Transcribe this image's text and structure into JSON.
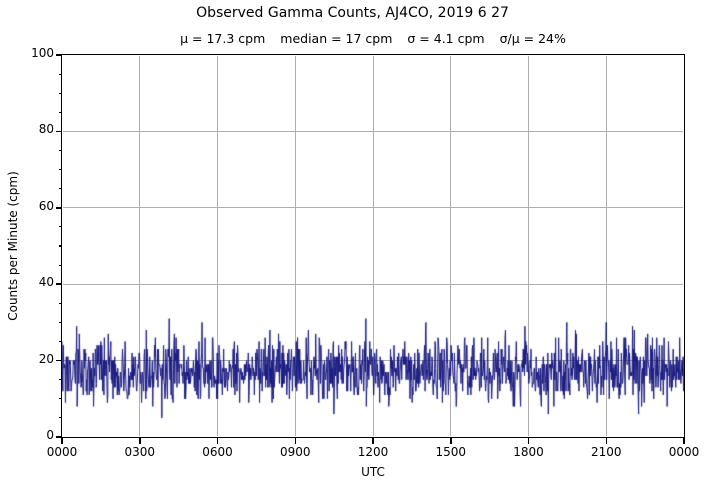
{
  "chart_data": {
    "type": "line",
    "title": "Observed Gamma Counts, AJ4CO, 2019 6 27",
    "stats": [
      "μ = 17.3 cpm",
      "median = 17 cpm",
      "σ = 4.1 cpm",
      "σ/μ = 24%"
    ],
    "xlabel": "UTC",
    "ylabel": "Counts per Minute (cpm)",
    "x_tick_labels": [
      "0000",
      "0300",
      "0600",
      "0900",
      "1200",
      "1500",
      "1800",
      "2100",
      "0000"
    ],
    "x_tick_interval_hours": 3,
    "x_range_hours": 24,
    "y_tick_labels": [
      "0",
      "20",
      "40",
      "60",
      "80",
      "100"
    ],
    "ylim": [
      0,
      100
    ],
    "y_major_interval": 20,
    "y_minor_interval": 5,
    "grid": true,
    "legend": "none",
    "series": [
      {
        "name": "observed-gamma-counts",
        "units": "cpm",
        "n_points": 1440,
        "distribution": "poisson-like counting noise",
        "mean_cpm": 17.3,
        "median_cpm": 17,
        "sigma_cpm": 4.1,
        "sigma_over_mu_percent": 24,
        "approx_min_cpm": 6,
        "approx_max_cpm": 31,
        "color": "#191980"
      }
    ],
    "colors": {
      "background": "#ffffff",
      "line": "#191980",
      "grid": "#b0b0b0",
      "axis": "#000000",
      "text": "#000000"
    }
  }
}
